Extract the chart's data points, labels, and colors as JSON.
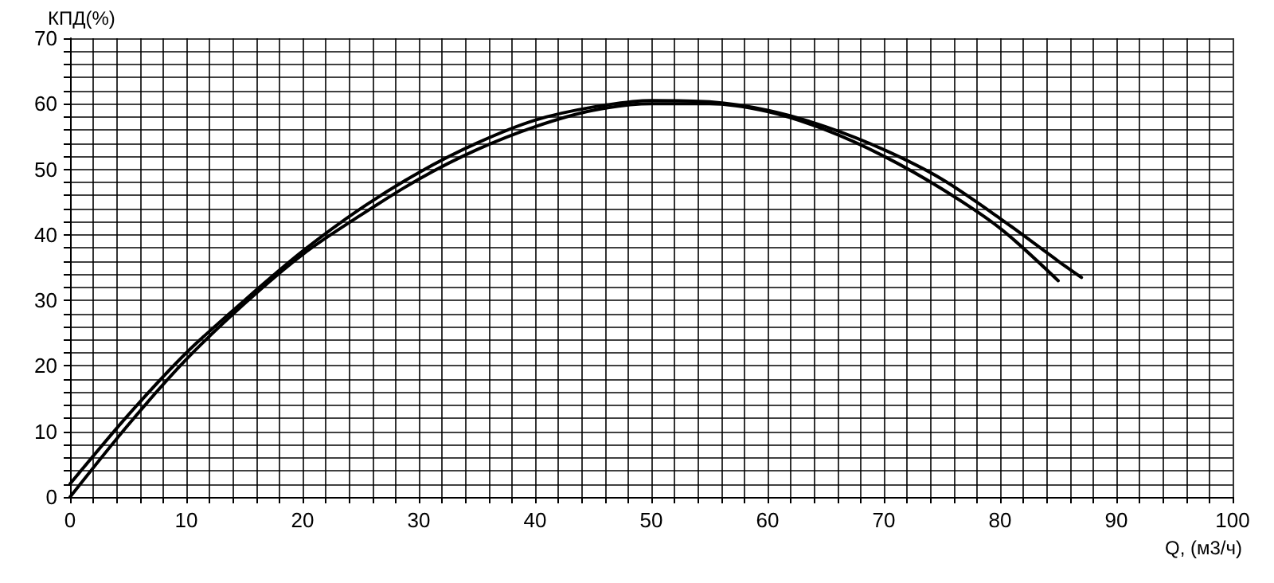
{
  "chart_data": {
    "type": "line",
    "xlabel": "Q, (м3/ч)",
    "ylabel": "КПД(%)",
    "xlim": [
      0,
      100
    ],
    "ylim": [
      0,
      70
    ],
    "xticks": [
      0,
      {
        "value": 2,
        "label": null
      },
      {
        "value": 4,
        "label": null
      },
      {
        "value": 6,
        "label": null
      },
      {
        "value": 8,
        "label": null
      },
      10,
      {
        "value": 12,
        "label": null
      },
      {
        "value": 14,
        "label": null
      },
      {
        "value": 16,
        "label": null
      },
      {
        "value": 18,
        "label": null
      },
      20,
      {
        "value": 22,
        "label": null
      },
      {
        "value": 24,
        "label": null
      },
      {
        "value": 26,
        "label": null
      },
      {
        "value": 28,
        "label": null
      },
      30,
      {
        "value": 32,
        "label": null
      },
      {
        "value": 34,
        "label": null
      },
      {
        "value": 36,
        "label": null
      },
      {
        "value": 38,
        "label": null
      },
      40,
      {
        "value": 42,
        "label": null
      },
      {
        "value": 44,
        "label": null
      },
      {
        "value": 46,
        "label": null
      },
      {
        "value": 48,
        "label": null
      },
      50,
      {
        "value": 52,
        "label": null
      },
      {
        "value": 54,
        "label": null
      },
      {
        "value": 56,
        "label": null
      },
      {
        "value": 58,
        "label": null
      },
      60,
      {
        "value": 62,
        "label": null
      },
      {
        "value": 64,
        "label": null
      },
      {
        "value": 66,
        "label": null
      },
      {
        "value": 68,
        "label": null
      },
      70,
      {
        "value": 72,
        "label": null
      },
      {
        "value": 74,
        "label": null
      },
      {
        "value": 76,
        "label": null
      },
      {
        "value": 78,
        "label": null
      },
      80,
      {
        "value": 82,
        "label": null
      },
      {
        "value": 84,
        "label": null
      },
      {
        "value": 86,
        "label": null
      },
      {
        "value": 88,
        "label": null
      },
      90,
      {
        "value": 92,
        "label": null
      },
      {
        "value": 94,
        "label": null
      },
      {
        "value": 96,
        "label": null
      },
      {
        "value": 98,
        "label": null
      },
      100
    ],
    "yticks": [
      0,
      {
        "value": 2,
        "label": null
      },
      {
        "value": 4,
        "label": null
      },
      {
        "value": 6,
        "label": null
      },
      {
        "value": 8,
        "label": null
      },
      10,
      {
        "value": 12,
        "label": null
      },
      {
        "value": 14,
        "label": null
      },
      {
        "value": 16,
        "label": null
      },
      {
        "value": 18,
        "label": null
      },
      20,
      {
        "value": 22,
        "label": null
      },
      {
        "value": 24,
        "label": null
      },
      {
        "value": 26,
        "label": null
      },
      {
        "value": 28,
        "label": null
      },
      30,
      {
        "value": 32,
        "label": null
      },
      {
        "value": 34,
        "label": null
      },
      {
        "value": 36,
        "label": null
      },
      {
        "value": 38,
        "label": null
      },
      40,
      {
        "value": 42,
        "label": null
      },
      {
        "value": 44,
        "label": null
      },
      {
        "value": 46,
        "label": null
      },
      {
        "value": 48,
        "label": null
      },
      50,
      {
        "value": 52,
        "label": null
      },
      {
        "value": 54,
        "label": null
      },
      {
        "value": 56,
        "label": null
      },
      {
        "value": 58,
        "label": null
      },
      60,
      {
        "value": 62,
        "label": null
      },
      {
        "value": 64,
        "label": null
      },
      {
        "value": 66,
        "label": null
      },
      {
        "value": 68,
        "label": null
      },
      70
    ],
    "grid": true,
    "marker": "none",
    "line_style": "solid",
    "series": [
      {
        "color": "#000000",
        "x": [
          0,
          5,
          10,
          15,
          20,
          25,
          30,
          35,
          40,
          45,
          50,
          55,
          60,
          65,
          70,
          75,
          80,
          85,
          87
        ],
        "values": [
          2,
          12.5,
          22,
          30,
          37.5,
          44,
          49.5,
          54,
          57.5,
          59.5,
          60.5,
          60.3,
          59,
          56.5,
          53,
          48.5,
          42.5,
          36,
          33.5
        ]
      },
      {
        "color": "#000000",
        "x": [
          0,
          5,
          10,
          15,
          20,
          25,
          30,
          35,
          40,
          45,
          50,
          55,
          60,
          65,
          70,
          75,
          80,
          85
        ],
        "values": [
          0,
          11,
          21,
          29.5,
          37,
          43,
          48.5,
          53,
          56.5,
          59,
          60,
          60,
          58.8,
          56,
          52,
          47,
          41,
          33
        ]
      }
    ]
  }
}
